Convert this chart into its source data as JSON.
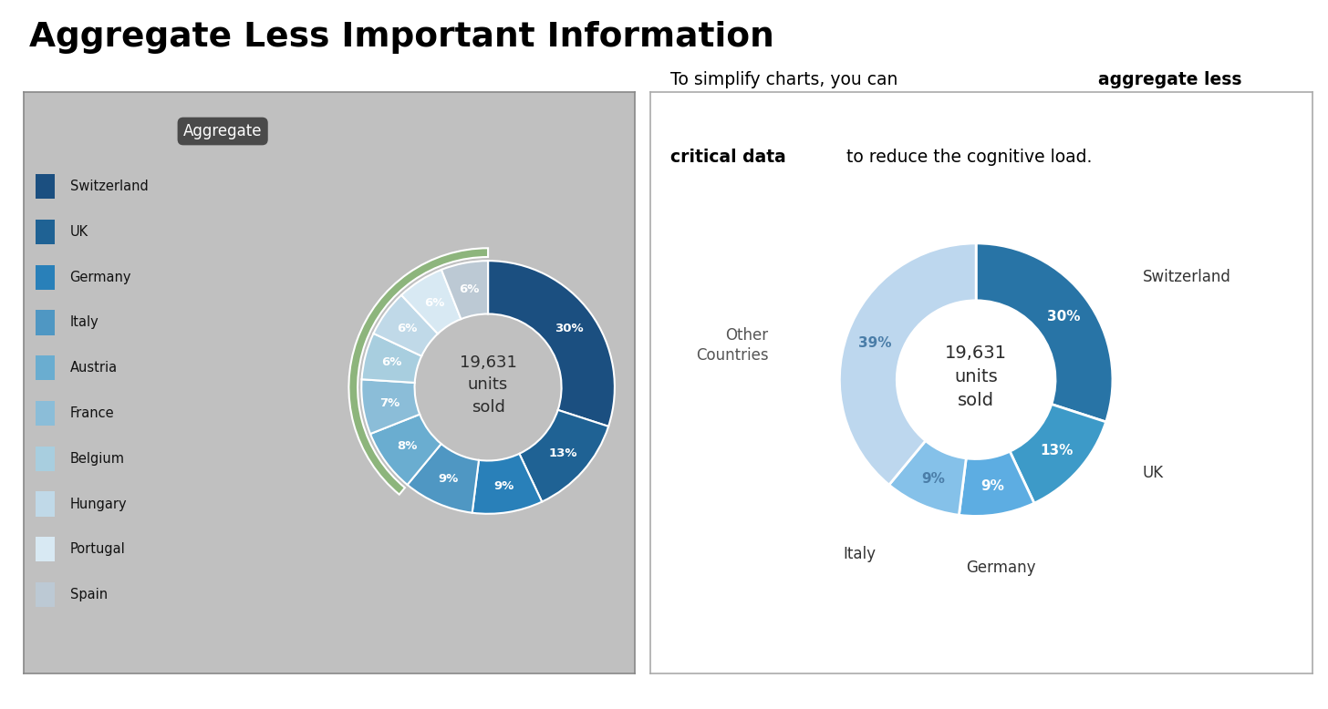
{
  "title": "Aggregate Less Important Information",
  "center_text": "19,631\nunits\nsold",
  "left_labels": [
    "Switzerland",
    "UK",
    "Germany",
    "Italy",
    "Austria",
    "France",
    "Belgium",
    "Hungary",
    "Portugal",
    "Spain"
  ],
  "left_values": [
    30,
    13,
    9,
    9,
    8,
    7,
    6,
    6,
    6,
    6
  ],
  "left_colors": [
    "#1B4F80",
    "#1F6294",
    "#2980B9",
    "#4F97C3",
    "#6AADD0",
    "#8BBDD8",
    "#A8CEDF",
    "#C0D9E8",
    "#D8E9F3",
    "#BCC9D4"
  ],
  "green_color": "#8DB57C",
  "bg_left": "#C0C0C0",
  "right_labels": [
    "Switzerland",
    "UK",
    "Germany",
    "Italy",
    "Other\nCountries"
  ],
  "right_values": [
    30,
    13,
    9,
    9,
    39
  ],
  "right_colors": [
    "#2874A6",
    "#3D9AC8",
    "#5DADE2",
    "#85C1E9",
    "#BDD7EE"
  ],
  "subtitle1_normal": "To simplify charts, you can ",
  "subtitle1_bold": "aggregate less",
  "subtitle2_bold": "critical data",
  "subtitle2_normal": " to reduce the cognitive load.",
  "figure_bg": "#FFFFFF"
}
